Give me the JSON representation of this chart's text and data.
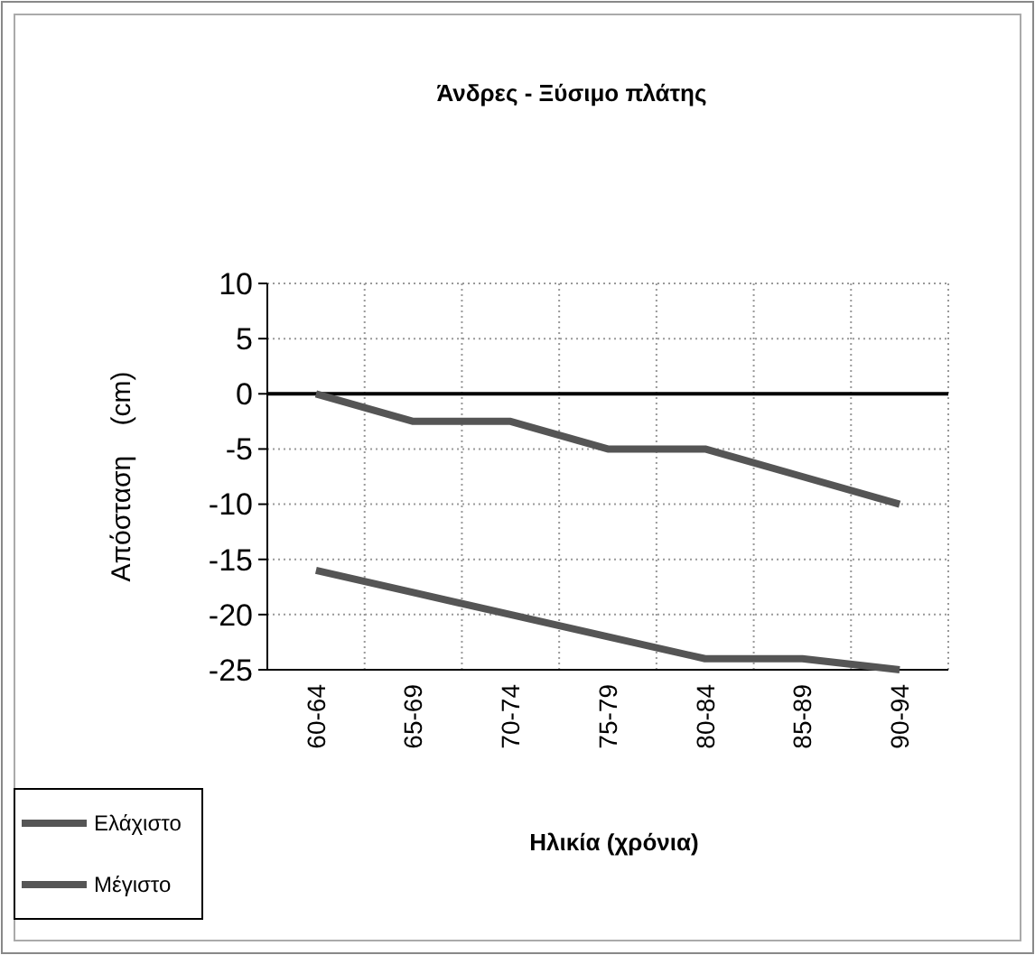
{
  "chart_data": {
    "type": "line",
    "title": "Άνδρες - Ξύσιμο πλάτης",
    "xlabel": "Ηλικία (χρόνια)",
    "ylabel": "Απόσταση    (cm)",
    "categories": [
      "60-64",
      "65-69",
      "70-74",
      "75-79",
      "80-84",
      "85-89",
      "90-94"
    ],
    "series": [
      {
        "name": "Ελάχιστο",
        "color": "#555555",
        "values": [
          -16,
          -18,
          -20,
          -22,
          -24,
          -24,
          -25
        ]
      },
      {
        "name": "Μέγιστο",
        "color": "#555555",
        "values": [
          0,
          -2.5,
          -2.5,
          -5,
          -5,
          -7.5,
          -10
        ]
      }
    ],
    "ylim": [
      -25,
      10
    ],
    "yticks": [
      10,
      5,
      0,
      -5,
      -10,
      -15,
      -20,
      -25
    ],
    "grid": true,
    "legend": "bottom left",
    "marker": "none",
    "line_style": "solid"
  }
}
